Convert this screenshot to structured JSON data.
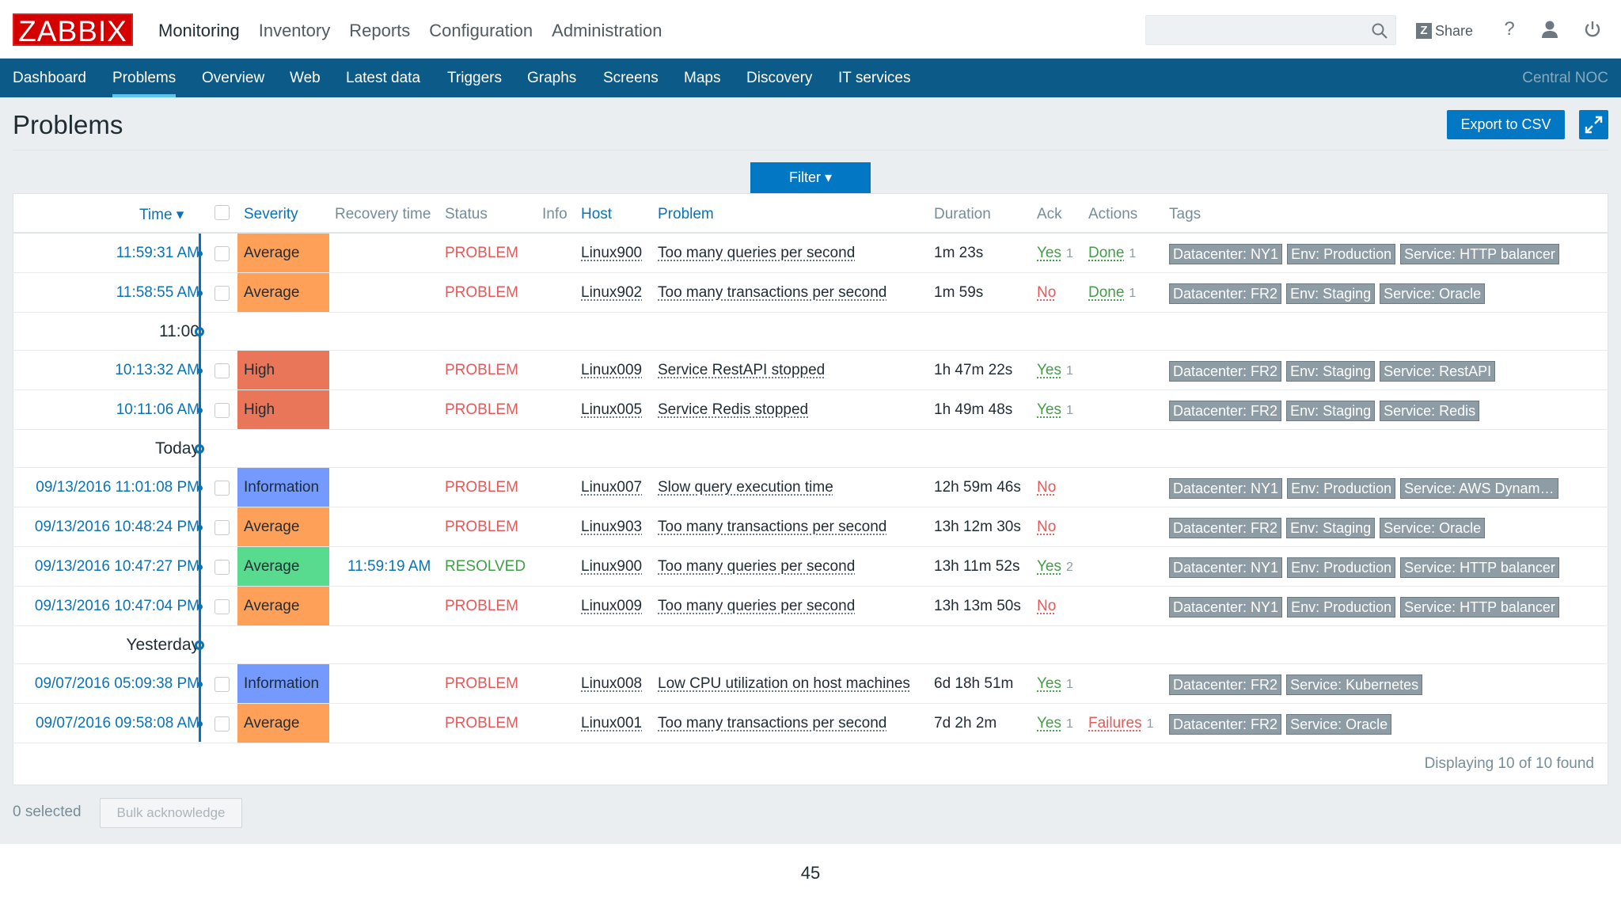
{
  "app": {
    "logo": "ZABBIX"
  },
  "topnav": [
    "Monitoring",
    "Inventory",
    "Reports",
    "Configuration",
    "Administration"
  ],
  "toolbar": {
    "share_label": "Share",
    "help": "?"
  },
  "subnav": [
    "Dashboard",
    "Problems",
    "Overview",
    "Web",
    "Latest data",
    "Triggers",
    "Graphs",
    "Screens",
    "Maps",
    "Discovery",
    "IT services"
  ],
  "subnav_right": "Central NOC",
  "page": {
    "title": "Problems",
    "export_label": "Export to CSV",
    "filter_label": "Filter ▾"
  },
  "columns": {
    "time": "Time ▾",
    "severity": "Severity",
    "recovery": "Recovery time",
    "status": "Status",
    "info": "Info",
    "host": "Host",
    "problem": "Problem",
    "duration": "Duration",
    "ack": "Ack",
    "actions": "Actions",
    "tags": "Tags"
  },
  "colors": {
    "average": "#ffa059",
    "high": "#e97659",
    "information": "#7499ff",
    "resolved_sev": "#59db8f",
    "problem": "#e45959",
    "resolved": "#429e47",
    "ack_yes": "#429e47",
    "ack_no": "#e45959",
    "accent": "#0278c4",
    "nav": "#0b5a87"
  },
  "groups": {
    "g1": "11:00",
    "g2": "Today",
    "g3": "Yesterday"
  },
  "rows": [
    {
      "time": "11:59:31 AM",
      "severity": "Average",
      "recovery": "",
      "status": "PROBLEM",
      "host": "Linux900",
      "problem": "Too many queries per second",
      "duration": "1m 23s",
      "ack": "Yes",
      "ack_n": "1",
      "action": "Done",
      "action_n": "1",
      "tags": [
        "Datacenter: NY1",
        "Env: Production",
        "Service: HTTP balancer"
      ]
    },
    {
      "time": "11:58:55 AM",
      "severity": "Average",
      "recovery": "",
      "status": "PROBLEM",
      "host": "Linux902",
      "problem": "Too many transactions per second",
      "duration": "1m 59s",
      "ack": "No",
      "ack_n": "",
      "action": "Done",
      "action_n": "1",
      "tags": [
        "Datacenter: FR2",
        "Env: Staging",
        "Service: Oracle"
      ]
    },
    {
      "time": "10:13:32 AM",
      "severity": "High",
      "recovery": "",
      "status": "PROBLEM",
      "host": "Linux009",
      "problem": "Service RestAPI stopped",
      "duration": "1h 47m 22s",
      "ack": "Yes",
      "ack_n": "1",
      "action": "",
      "action_n": "",
      "tags": [
        "Datacenter: FR2",
        "Env: Staging",
        "Service: RestAPI"
      ]
    },
    {
      "time": "10:11:06 AM",
      "severity": "High",
      "recovery": "",
      "status": "PROBLEM",
      "host": "Linux005",
      "problem": "Service Redis stopped",
      "duration": "1h 49m 48s",
      "ack": "Yes",
      "ack_n": "1",
      "action": "",
      "action_n": "",
      "tags": [
        "Datacenter: FR2",
        "Env: Staging",
        "Service: Redis"
      ]
    },
    {
      "time": "09/13/2016 11:01:08 PM",
      "severity": "Information",
      "recovery": "",
      "status": "PROBLEM",
      "host": "Linux007",
      "problem": "Slow query execution time",
      "duration": "12h 59m 46s",
      "ack": "No",
      "ack_n": "",
      "action": "",
      "action_n": "",
      "tags": [
        "Datacenter: NY1",
        "Env: Production",
        "Service: AWS Dynam…"
      ]
    },
    {
      "time": "09/13/2016 10:48:24 PM",
      "severity": "Average",
      "recovery": "",
      "status": "PROBLEM",
      "host": "Linux903",
      "problem": "Too many transactions per second",
      "duration": "13h 12m 30s",
      "ack": "No",
      "ack_n": "",
      "action": "",
      "action_n": "",
      "tags": [
        "Datacenter: FR2",
        "Env: Staging",
        "Service: Oracle"
      ]
    },
    {
      "time": "09/13/2016 10:47:27 PM",
      "severity": "Average",
      "recovery": "11:59:19 AM",
      "status": "RESOLVED",
      "host": "Linux900",
      "problem": "Too many queries per second",
      "duration": "13h 11m 52s",
      "ack": "Yes",
      "ack_n": "2",
      "action": "",
      "action_n": "",
      "tags": [
        "Datacenter: NY1",
        "Env: Production",
        "Service: HTTP balancer"
      ]
    },
    {
      "time": "09/13/2016 10:47:04 PM",
      "severity": "Average",
      "recovery": "",
      "status": "PROBLEM",
      "host": "Linux009",
      "problem": "Too many queries per second",
      "duration": "13h 13m 50s",
      "ack": "No",
      "ack_n": "",
      "action": "",
      "action_n": "",
      "tags": [
        "Datacenter: NY1",
        "Env: Production",
        "Service: HTTP balancer"
      ]
    },
    {
      "time": "09/07/2016 05:09:38 PM",
      "severity": "Information",
      "recovery": "",
      "status": "PROBLEM",
      "host": "Linux008",
      "problem": "Low CPU utilization on host machines",
      "duration": "6d 18h 51m",
      "ack": "Yes",
      "ack_n": "1",
      "action": "",
      "action_n": "",
      "tags": [
        "Datacenter: FR2",
        "Service: Kubernetes"
      ]
    },
    {
      "time": "09/07/2016 09:58:08 AM",
      "severity": "Average",
      "recovery": "",
      "status": "PROBLEM",
      "host": "Linux001",
      "problem": "Too many transactions per second",
      "duration": "7d 2h 2m",
      "ack": "Yes",
      "ack_n": "1",
      "action": "Failures",
      "action_n": "1",
      "tags": [
        "Datacenter: FR2",
        "Service: Oracle"
      ]
    }
  ],
  "footer": {
    "displaying": "Displaying 10 of 10 found",
    "selected": "0 selected",
    "bulk_label": "Bulk acknowledge"
  },
  "page_number": "45"
}
